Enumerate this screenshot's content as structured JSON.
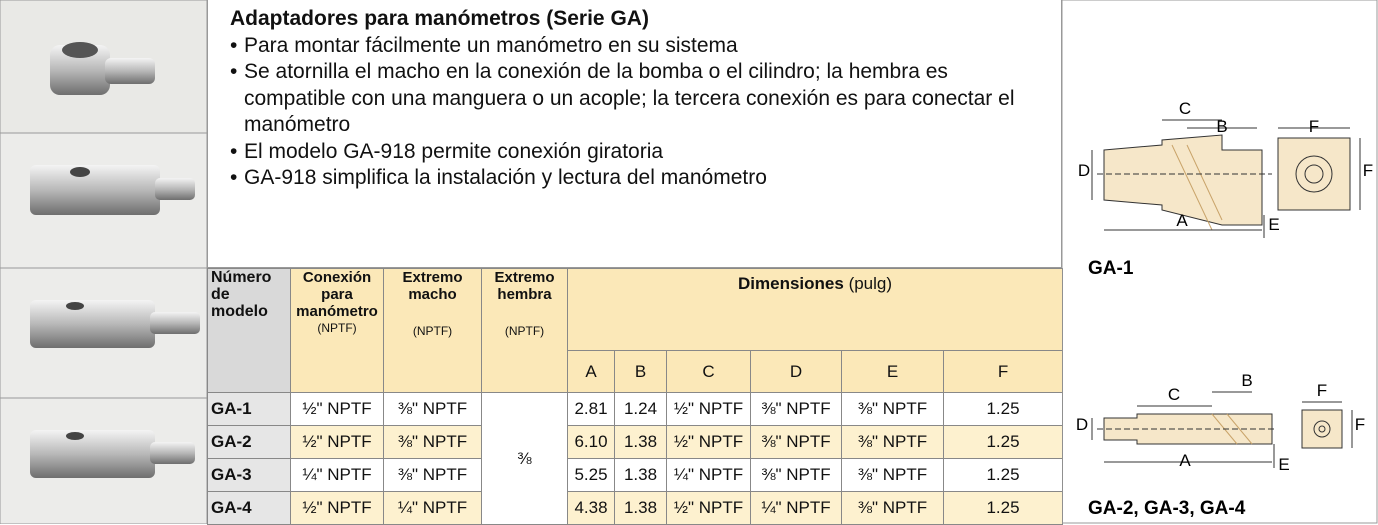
{
  "description": {
    "title": "Adaptadores para manómetros (Serie GA)",
    "bullets": [
      "Para montar fácilmente un manómetro en su sistema",
      "Se atornilla el macho en la conexión de la bomba o el cilindro; la hembra es compatible con una manguera o un acople; la tercera conexión es para conectar el manómetro",
      "El modelo GA-918 permite conexión giratoria",
      "GA-918 simplifica la instalación y lectura del manómetro"
    ]
  },
  "table": {
    "columns": [
      {
        "label": "Número de modelo"
      },
      {
        "label": "Conexión para manómetro",
        "unit": "(NPTF)"
      },
      {
        "label": "Extremo macho",
        "unit": "(NPTF)"
      },
      {
        "label": "Extremo hembra",
        "unit": "(NPTF)"
      }
    ],
    "dimensions": {
      "label": "Dimensiones",
      "unit": "(pulg)",
      "columns": [
        "A",
        "B",
        "C",
        "D",
        "E",
        "F"
      ]
    },
    "female_end": "⅜",
    "rows": [
      [
        "GA-1",
        "½\" NPTF",
        "⅜\" NPTF",
        "2.81",
        "1.24",
        "½\" NPTF",
        "⅜\" NPTF",
        "⅜\" NPTF",
        "1.25"
      ],
      [
        "GA-2",
        "½\" NPTF",
        "⅜\" NPTF",
        "6.10",
        "1.38",
        "½\" NPTF",
        "⅜\" NPTF",
        "⅜\" NPTF",
        "1.25"
      ],
      [
        "GA-3",
        "¼\" NPTF",
        "⅜\" NPTF",
        "5.25",
        "1.38",
        "¼\" NPTF",
        "⅜\" NPTF",
        "⅜\" NPTF",
        "1.25"
      ],
      [
        "GA-4",
        "½\" NPTF",
        "¼\" NPTF",
        "4.38",
        "1.38",
        "½\" NPTF",
        "¼\" NPTF",
        "⅜\" NPTF",
        "1.25"
      ]
    ]
  },
  "diagrams": [
    {
      "caption": "GA-1",
      "labels": [
        "C",
        "B",
        "F",
        "D",
        "F",
        "A",
        "E"
      ]
    },
    {
      "caption": "GA-2, GA-3, GA-4",
      "labels": [
        "B",
        "C",
        "F",
        "D",
        "F",
        "A",
        "E"
      ]
    }
  ]
}
